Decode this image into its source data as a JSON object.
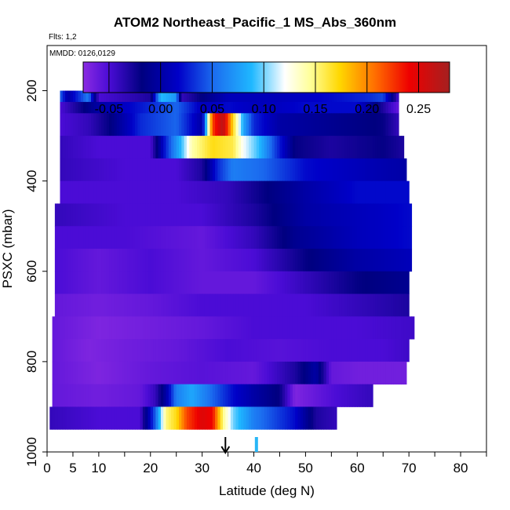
{
  "title": "ATOM2 Northeast_Pacific_1 MS_Abs_360nm",
  "flights_label": "Flts: 1,2",
  "mmdd_label": "MMDD: 0126,0129",
  "chart_data": {
    "type": "heatmap",
    "title": "ATOM2 Northeast_Pacific_1 MS_Abs_360nm",
    "xlabel": "Latitude (deg N)",
    "ylabel": "PSXC (mbar)",
    "xlim": [
      0,
      85
    ],
    "ylim": [
      1000,
      100
    ],
    "y_reversed": true,
    "x_ticks": [
      0,
      5,
      10,
      20,
      30,
      40,
      50,
      60,
      70,
      80
    ],
    "x_tick_labels": [
      "0",
      "5",
      "10",
      "20",
      "30",
      "40",
      "50",
      "60",
      "70",
      "80"
    ],
    "y_ticks": [
      200,
      400,
      600,
      800,
      1000
    ],
    "y_tick_labels": [
      "200",
      "400",
      "600",
      "800",
      "1000"
    ],
    "colorbar": {
      "min": -0.075,
      "max": 0.28,
      "ticks": [
        -0.05,
        0.0,
        0.05,
        0.1,
        0.15,
        0.2,
        0.25
      ],
      "tick_labels": [
        "-0.05",
        "0.00",
        "0.05",
        "0.10",
        "0.15",
        "0.20",
        "0.25"
      ]
    },
    "marker_latitudes": [
      34.5,
      40.5
    ],
    "pressure_bins": [
      {
        "p_top": 175,
        "p_bot": 200,
        "lat_start": 28,
        "lat_end": 65,
        "stops": [
          [
            28,
            -0.06
          ],
          [
            35,
            -0.04
          ],
          [
            45,
            -0.02
          ],
          [
            55,
            0.0
          ],
          [
            65,
            0.01
          ]
        ]
      },
      {
        "p_top": 200,
        "p_bot": 225,
        "lat_start": 2.5,
        "lat_end": 68,
        "stops": [
          [
            2.5,
            0.05
          ],
          [
            4,
            0.0
          ],
          [
            8,
            0.06
          ],
          [
            10,
            -0.05
          ],
          [
            20,
            -0.03
          ],
          [
            22,
            0.09
          ],
          [
            25,
            0.07
          ],
          [
            26,
            -0.04
          ],
          [
            35,
            0.01
          ],
          [
            45,
            0.01
          ],
          [
            55,
            0.02
          ],
          [
            62,
            0.03
          ],
          [
            65,
            0.04
          ],
          [
            68,
            -0.05
          ]
        ]
      },
      {
        "p_top": 225,
        "p_bot": 250,
        "lat_start": 2.5,
        "lat_end": 68,
        "stops": [
          [
            2.5,
            -0.05
          ],
          [
            10,
            0.0
          ],
          [
            20,
            0.03
          ],
          [
            25,
            0.05
          ],
          [
            30,
            0.01
          ],
          [
            35,
            0.02
          ],
          [
            42,
            0.01
          ],
          [
            50,
            0.02
          ],
          [
            60,
            0.02
          ],
          [
            68,
            -0.06
          ]
        ]
      },
      {
        "p_top": 250,
        "p_bot": 300,
        "lat_start": 2.5,
        "lat_end": 68,
        "stops": [
          [
            2.5,
            -0.05
          ],
          [
            8,
            -0.04
          ],
          [
            12,
            -0.02
          ],
          [
            18,
            0.03
          ],
          [
            25,
            0.05
          ],
          [
            28,
            0.02
          ],
          [
            30,
            0.0
          ],
          [
            32,
            0.22
          ],
          [
            34,
            0.27
          ],
          [
            36,
            0.17
          ],
          [
            38,
            0.08
          ],
          [
            40,
            0.03
          ],
          [
            45,
            0.0
          ],
          [
            55,
            -0.01
          ],
          [
            65,
            -0.02
          ],
          [
            68,
            -0.04
          ]
        ]
      },
      {
        "p_top": 300,
        "p_bot": 350,
        "lat_start": 2.5,
        "lat_end": 69,
        "stops": [
          [
            2.5,
            -0.04
          ],
          [
            10,
            -0.05
          ],
          [
            20,
            -0.05
          ],
          [
            23,
            0.03
          ],
          [
            26,
            0.09
          ],
          [
            28,
            0.14
          ],
          [
            32,
            0.17
          ],
          [
            36,
            0.16
          ],
          [
            38,
            0.12
          ],
          [
            41,
            0.09
          ],
          [
            44,
            0.04
          ],
          [
            48,
            -0.02
          ],
          [
            55,
            -0.03
          ],
          [
            65,
            -0.02
          ],
          [
            69,
            -0.03
          ]
        ]
      },
      {
        "p_top": 350,
        "p_bot": 400,
        "lat_start": 2.5,
        "lat_end": 69.5,
        "stops": [
          [
            2.5,
            -0.04
          ],
          [
            15,
            -0.05
          ],
          [
            25,
            -0.05
          ],
          [
            30,
            -0.03
          ],
          [
            33,
            0.03
          ],
          [
            36,
            0.06
          ],
          [
            42,
            0.05
          ],
          [
            50,
            0.02
          ],
          [
            60,
            0.01
          ],
          [
            69.5,
            0.0
          ]
        ]
      },
      {
        "p_top": 400,
        "p_bot": 450,
        "lat_start": 2.5,
        "lat_end": 70,
        "stops": [
          [
            2.5,
            -0.05
          ],
          [
            15,
            -0.05
          ],
          [
            25,
            -0.05
          ],
          [
            35,
            -0.04
          ],
          [
            42,
            -0.02
          ],
          [
            50,
            0.0
          ],
          [
            60,
            0.02
          ],
          [
            70,
            0.02
          ]
        ]
      },
      {
        "p_top": 450,
        "p_bot": 500,
        "lat_start": 1.5,
        "lat_end": 70.5,
        "stops": [
          [
            1.5,
            -0.04
          ],
          [
            15,
            -0.05
          ],
          [
            30,
            -0.05
          ],
          [
            40,
            -0.03
          ],
          [
            50,
            0.0
          ],
          [
            60,
            0.01
          ],
          [
            70.5,
            0.02
          ]
        ]
      },
      {
        "p_top": 500,
        "p_bot": 550,
        "lat_start": 1.5,
        "lat_end": 70.5,
        "stops": [
          [
            1.5,
            -0.05
          ],
          [
            15,
            -0.05
          ],
          [
            30,
            -0.06
          ],
          [
            40,
            -0.04
          ],
          [
            48,
            -0.01
          ],
          [
            60,
            0.01
          ],
          [
            70.5,
            0.02
          ]
        ]
      },
      {
        "p_top": 550,
        "p_bot": 600,
        "lat_start": 1.5,
        "lat_end": 70.5,
        "stops": [
          [
            1.5,
            -0.05
          ],
          [
            10,
            -0.06
          ],
          [
            20,
            -0.05
          ],
          [
            30,
            -0.06
          ],
          [
            40,
            -0.05
          ],
          [
            50,
            -0.02
          ],
          [
            60,
            0.0
          ],
          [
            70.5,
            0.01
          ]
        ]
      },
      {
        "p_top": 600,
        "p_bot": 650,
        "lat_start": 1.5,
        "lat_end": 70,
        "stops": [
          [
            1.5,
            -0.05
          ],
          [
            10,
            -0.06
          ],
          [
            20,
            -0.05
          ],
          [
            30,
            -0.06
          ],
          [
            40,
            -0.06
          ],
          [
            50,
            -0.04
          ],
          [
            60,
            -0.02
          ],
          [
            70,
            -0.01
          ]
        ]
      },
      {
        "p_top": 650,
        "p_bot": 700,
        "lat_start": 1.5,
        "lat_end": 70,
        "stops": [
          [
            1.5,
            -0.06
          ],
          [
            10,
            -0.065
          ],
          [
            20,
            -0.06
          ],
          [
            30,
            -0.05
          ],
          [
            40,
            -0.05
          ],
          [
            50,
            -0.05
          ],
          [
            60,
            -0.04
          ],
          [
            70,
            -0.03
          ]
        ]
      },
      {
        "p_top": 700,
        "p_bot": 750,
        "lat_start": 1,
        "lat_end": 71,
        "stops": [
          [
            1,
            -0.06
          ],
          [
            10,
            -0.07
          ],
          [
            20,
            -0.065
          ],
          [
            30,
            -0.06
          ],
          [
            40,
            -0.05
          ],
          [
            50,
            -0.05
          ],
          [
            60,
            -0.05
          ],
          [
            71,
            -0.045
          ]
        ]
      },
      {
        "p_top": 750,
        "p_bot": 800,
        "lat_start": 1,
        "lat_end": 70,
        "stops": [
          [
            1,
            -0.06
          ],
          [
            8,
            -0.07
          ],
          [
            15,
            -0.065
          ],
          [
            25,
            -0.06
          ],
          [
            35,
            -0.05
          ],
          [
            45,
            -0.055
          ],
          [
            55,
            -0.05
          ],
          [
            65,
            -0.05
          ],
          [
            70,
            -0.045
          ]
        ]
      },
      {
        "p_top": 800,
        "p_bot": 850,
        "lat_start": 1,
        "lat_end": 69.5,
        "stops": [
          [
            1,
            -0.06
          ],
          [
            10,
            -0.07
          ],
          [
            20,
            -0.06
          ],
          [
            30,
            -0.055
          ],
          [
            40,
            -0.06
          ],
          [
            48,
            -0.03
          ],
          [
            52,
            0.0
          ],
          [
            55,
            -0.06
          ],
          [
            60,
            -0.065
          ],
          [
            69.5,
            -0.065
          ]
        ]
      },
      {
        "p_top": 850,
        "p_bot": 900,
        "lat_start": 1,
        "lat_end": 63,
        "stops": [
          [
            1,
            -0.06
          ],
          [
            10,
            -0.065
          ],
          [
            18,
            -0.06
          ],
          [
            21,
            -0.04
          ],
          [
            23,
            0.0
          ],
          [
            25,
            0.06
          ],
          [
            28,
            0.08
          ],
          [
            32,
            0.05
          ],
          [
            36,
            0.02
          ],
          [
            40,
            0.0
          ],
          [
            45,
            -0.02
          ],
          [
            48,
            -0.07
          ],
          [
            52,
            -0.06
          ],
          [
            56,
            -0.05
          ],
          [
            63,
            -0.04
          ]
        ]
      },
      {
        "p_top": 900,
        "p_bot": 950,
        "lat_start": 0.5,
        "lat_end": 56,
        "stops": [
          [
            0.5,
            -0.04
          ],
          [
            10,
            -0.05
          ],
          [
            18,
            -0.05
          ],
          [
            21,
            0.05
          ],
          [
            23,
            0.15
          ],
          [
            25,
            0.17
          ],
          [
            27,
            0.22
          ],
          [
            30,
            0.25
          ],
          [
            32,
            0.24
          ],
          [
            34,
            0.15
          ],
          [
            36,
            0.1
          ],
          [
            38,
            0.08
          ],
          [
            40,
            0.06
          ],
          [
            44,
            0.04
          ],
          [
            48,
            0.02
          ],
          [
            52,
            -0.03
          ],
          [
            56,
            -0.04
          ]
        ]
      }
    ]
  }
}
